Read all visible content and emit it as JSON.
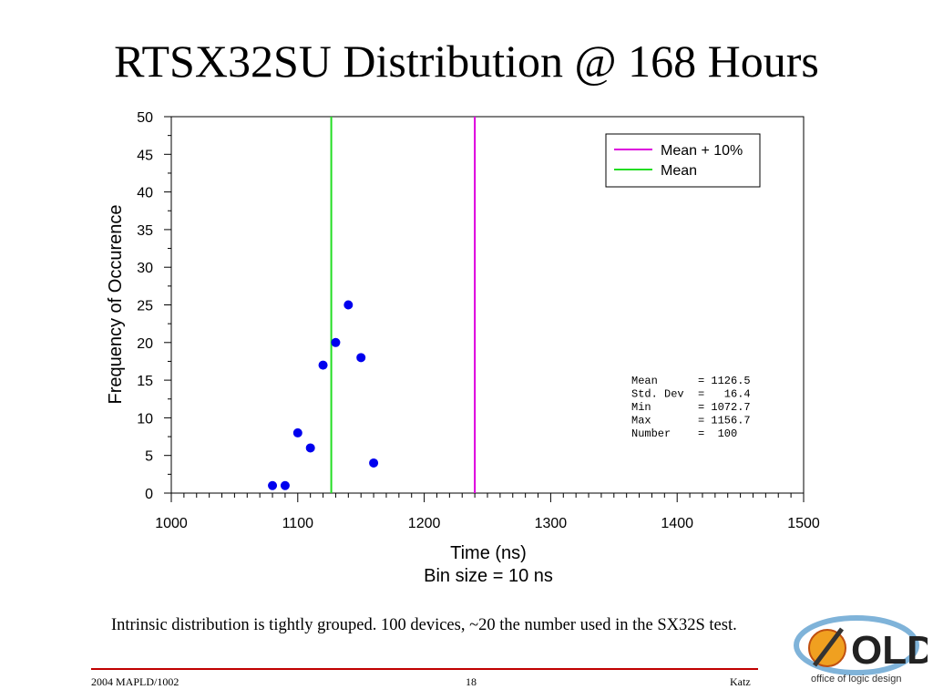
{
  "slide": {
    "title": "RTSX32SU Distribution @ 168 Hours",
    "caption": "Intrinsic distribution is tightly grouped.  100 devices, ~20 the number used in the SX32S test.",
    "footer_left": "2004 MAPLD/1002",
    "footer_center": "18",
    "footer_right": "Katz",
    "logo_text": "OLD",
    "logo_tagline": "office of logic design"
  },
  "colors": {
    "points": "#0000ee",
    "mean_line": "#22dd22",
    "mean_plus_line": "#dd00dd",
    "footer_rule": "#c00000"
  },
  "chart_data": {
    "type": "scatter",
    "title": "",
    "xlabel": "Time (ns)",
    "xlabel_sub": "Bin size = 10 ns",
    "ylabel": "Frequency of Occurence",
    "xlim": [
      1000,
      1500
    ],
    "ylim": [
      0,
      50
    ],
    "x_ticks": [
      1000,
      1100,
      1200,
      1300,
      1400,
      1500
    ],
    "y_ticks": [
      0,
      5,
      10,
      15,
      20,
      25,
      30,
      35,
      40,
      45,
      50
    ],
    "grid": false,
    "series": [
      {
        "x": [
          1080,
          1090,
          1100,
          1110,
          1120,
          1130,
          1140,
          1150,
          1160
        ],
        "y": [
          1,
          1,
          8,
          6,
          17,
          20,
          25,
          18,
          4
        ]
      }
    ],
    "reference_lines": [
      {
        "name": "Mean + 10%",
        "x": 1240
      },
      {
        "name": "Mean",
        "x": 1126.5
      }
    ],
    "legend": {
      "position": "top-right",
      "entries": [
        "Mean + 10%",
        "Mean"
      ]
    },
    "stats": [
      {
        "label": "Mean",
        "value": "= 1126.5"
      },
      {
        "label": "Std. Dev",
        "value": "=   16.4"
      },
      {
        "label": "Min",
        "value": "= 1072.7"
      },
      {
        "label": "Max",
        "value": "= 1156.7"
      },
      {
        "label": "Number",
        "value": "=  100"
      }
    ]
  }
}
